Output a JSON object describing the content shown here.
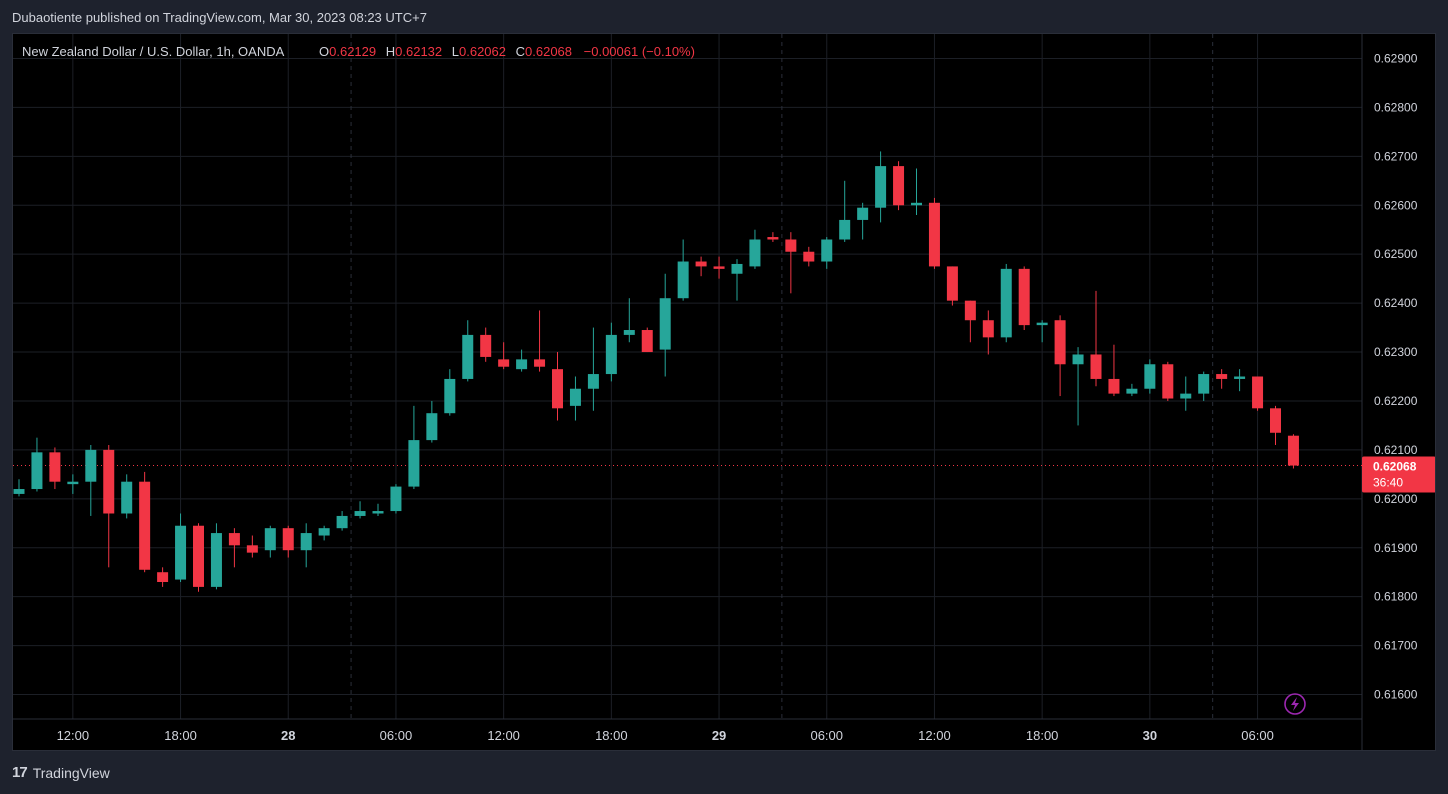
{
  "header": {
    "published": "Dubaotiente published on TradingView.com, Mar 30, 2023 08:23 UTC+7"
  },
  "legend": {
    "symbol": "New Zealand Dollar / U.S. Dollar, 1h, OANDA",
    "o_label": "O",
    "o_value": "0.62129",
    "h_label": "H",
    "h_value": "0.62132",
    "l_label": "L",
    "l_value": "0.62062",
    "c_label": "C",
    "c_value": "0.62068",
    "change": "−0.00061 (−0.10%)"
  },
  "price_tag": {
    "price": "0.62068",
    "countdown": "36:40"
  },
  "footer": {
    "brand": "TradingView"
  },
  "colors": {
    "up": "#26a69a",
    "down": "#f23645",
    "grid": "#1c1f26",
    "text": "#d1d4dc"
  },
  "chart_data": {
    "type": "candlestick",
    "ylim": [
      0.6155,
      0.6295
    ],
    "y_ticks": [
      "0.62900",
      "0.62800",
      "0.62700",
      "0.62600",
      "0.62500",
      "0.62400",
      "0.62300",
      "0.62200",
      "0.62100",
      "0.62000",
      "0.61900",
      "0.61800",
      "0.61700",
      "0.61600"
    ],
    "x_ticks": [
      {
        "index": 3,
        "label": "12:00",
        "bold": false
      },
      {
        "index": 9,
        "label": "18:00",
        "bold": false
      },
      {
        "index": 15,
        "label": "28",
        "bold": true
      },
      {
        "index": 21,
        "label": "06:00",
        "bold": false
      },
      {
        "index": 27,
        "label": "12:00",
        "bold": false
      },
      {
        "index": 33,
        "label": "18:00",
        "bold": false
      },
      {
        "index": 39,
        "label": "29",
        "bold": true
      },
      {
        "index": 45,
        "label": "06:00",
        "bold": false
      },
      {
        "index": 51,
        "label": "12:00",
        "bold": false
      },
      {
        "index": 57,
        "label": "18:00",
        "bold": false
      },
      {
        "index": 63,
        "label": "30",
        "bold": true
      },
      {
        "index": 69,
        "label": "06:00",
        "bold": false
      }
    ],
    "last_price": 0.62068,
    "candles": [
      {
        "o": 0.6201,
        "h": 0.6204,
        "l": 0.62005,
        "c": 0.6202
      },
      {
        "o": 0.6202,
        "h": 0.62125,
        "l": 0.62015,
        "c": 0.62095
      },
      {
        "o": 0.62095,
        "h": 0.62105,
        "l": 0.6202,
        "c": 0.62035
      },
      {
        "o": 0.6203,
        "h": 0.6205,
        "l": 0.6201,
        "c": 0.62035
      },
      {
        "o": 0.62035,
        "h": 0.6211,
        "l": 0.61965,
        "c": 0.621
      },
      {
        "o": 0.621,
        "h": 0.6211,
        "l": 0.6186,
        "c": 0.6197
      },
      {
        "o": 0.6197,
        "h": 0.6205,
        "l": 0.6196,
        "c": 0.62035
      },
      {
        "o": 0.62035,
        "h": 0.62055,
        "l": 0.6185,
        "c": 0.61855
      },
      {
        "o": 0.6185,
        "h": 0.6186,
        "l": 0.6182,
        "c": 0.6183
      },
      {
        "o": 0.61835,
        "h": 0.6197,
        "l": 0.6183,
        "c": 0.61945
      },
      {
        "o": 0.61945,
        "h": 0.6195,
        "l": 0.6181,
        "c": 0.6182
      },
      {
        "o": 0.6182,
        "h": 0.6195,
        "l": 0.61815,
        "c": 0.6193
      },
      {
        "o": 0.6193,
        "h": 0.6194,
        "l": 0.6186,
        "c": 0.61905
      },
      {
        "o": 0.61905,
        "h": 0.61925,
        "l": 0.6188,
        "c": 0.6189
      },
      {
        "o": 0.61895,
        "h": 0.61945,
        "l": 0.6188,
        "c": 0.6194
      },
      {
        "o": 0.6194,
        "h": 0.61945,
        "l": 0.6188,
        "c": 0.61895
      },
      {
        "o": 0.61895,
        "h": 0.6195,
        "l": 0.6186,
        "c": 0.6193
      },
      {
        "o": 0.61925,
        "h": 0.61945,
        "l": 0.61915,
        "c": 0.6194
      },
      {
        "o": 0.6194,
        "h": 0.61975,
        "l": 0.61935,
        "c": 0.61965
      },
      {
        "o": 0.61965,
        "h": 0.61995,
        "l": 0.6196,
        "c": 0.61975
      },
      {
        "o": 0.6197,
        "h": 0.6199,
        "l": 0.61965,
        "c": 0.61975
      },
      {
        "o": 0.61975,
        "h": 0.6203,
        "l": 0.6197,
        "c": 0.62025
      },
      {
        "o": 0.62025,
        "h": 0.6219,
        "l": 0.6202,
        "c": 0.6212
      },
      {
        "o": 0.6212,
        "h": 0.622,
        "l": 0.62115,
        "c": 0.62175
      },
      {
        "o": 0.62175,
        "h": 0.62265,
        "l": 0.6217,
        "c": 0.62245
      },
      {
        "o": 0.62245,
        "h": 0.62365,
        "l": 0.6224,
        "c": 0.62335
      },
      {
        "o": 0.62335,
        "h": 0.6235,
        "l": 0.6228,
        "c": 0.6229
      },
      {
        "o": 0.62285,
        "h": 0.6232,
        "l": 0.62265,
        "c": 0.6227
      },
      {
        "o": 0.62265,
        "h": 0.62305,
        "l": 0.6226,
        "c": 0.62285
      },
      {
        "o": 0.62285,
        "h": 0.62385,
        "l": 0.6226,
        "c": 0.6227
      },
      {
        "o": 0.62265,
        "h": 0.623,
        "l": 0.6216,
        "c": 0.62185
      },
      {
        "o": 0.6219,
        "h": 0.6225,
        "l": 0.6216,
        "c": 0.62225
      },
      {
        "o": 0.62225,
        "h": 0.6235,
        "l": 0.6218,
        "c": 0.62255
      },
      {
        "o": 0.62255,
        "h": 0.6236,
        "l": 0.6224,
        "c": 0.62335
      },
      {
        "o": 0.62335,
        "h": 0.6241,
        "l": 0.6232,
        "c": 0.62345
      },
      {
        "o": 0.62345,
        "h": 0.6235,
        "l": 0.623,
        "c": 0.623
      },
      {
        "o": 0.62305,
        "h": 0.6246,
        "l": 0.6225,
        "c": 0.6241
      },
      {
        "o": 0.6241,
        "h": 0.6253,
        "l": 0.62405,
        "c": 0.62485
      },
      {
        "o": 0.62485,
        "h": 0.62495,
        "l": 0.62455,
        "c": 0.62475
      },
      {
        "o": 0.62475,
        "h": 0.62495,
        "l": 0.6245,
        "c": 0.6247
      },
      {
        "o": 0.6246,
        "h": 0.6249,
        "l": 0.62405,
        "c": 0.6248
      },
      {
        "o": 0.62475,
        "h": 0.6255,
        "l": 0.6247,
        "c": 0.6253
      },
      {
        "o": 0.62535,
        "h": 0.62545,
        "l": 0.62525,
        "c": 0.6253
      },
      {
        "o": 0.6253,
        "h": 0.62545,
        "l": 0.6242,
        "c": 0.62505
      },
      {
        "o": 0.62505,
        "h": 0.62515,
        "l": 0.62475,
        "c": 0.62485
      },
      {
        "o": 0.62485,
        "h": 0.62535,
        "l": 0.6247,
        "c": 0.6253
      },
      {
        "o": 0.6253,
        "h": 0.6265,
        "l": 0.62525,
        "c": 0.6257
      },
      {
        "o": 0.6257,
        "h": 0.62605,
        "l": 0.6253,
        "c": 0.62595
      },
      {
        "o": 0.62595,
        "h": 0.6271,
        "l": 0.62565,
        "c": 0.6268
      },
      {
        "o": 0.6268,
        "h": 0.6269,
        "l": 0.6259,
        "c": 0.626
      },
      {
        "o": 0.626,
        "h": 0.62675,
        "l": 0.6258,
        "c": 0.62605
      },
      {
        "o": 0.62605,
        "h": 0.62615,
        "l": 0.6247,
        "c": 0.62475
      },
      {
        "o": 0.62475,
        "h": 0.62475,
        "l": 0.62395,
        "c": 0.62405
      },
      {
        "o": 0.62405,
        "h": 0.62405,
        "l": 0.6232,
        "c": 0.62365
      },
      {
        "o": 0.62365,
        "h": 0.62385,
        "l": 0.62295,
        "c": 0.6233
      },
      {
        "o": 0.6233,
        "h": 0.6248,
        "l": 0.6232,
        "c": 0.6247
      },
      {
        "o": 0.6247,
        "h": 0.62475,
        "l": 0.62345,
        "c": 0.62355
      },
      {
        "o": 0.62355,
        "h": 0.62365,
        "l": 0.6232,
        "c": 0.6236
      },
      {
        "o": 0.62365,
        "h": 0.62375,
        "l": 0.6221,
        "c": 0.62275
      },
      {
        "o": 0.62275,
        "h": 0.6231,
        "l": 0.6215,
        "c": 0.62295
      },
      {
        "o": 0.62295,
        "h": 0.62425,
        "l": 0.6223,
        "c": 0.62245
      },
      {
        "o": 0.62245,
        "h": 0.62315,
        "l": 0.6221,
        "c": 0.62215
      },
      {
        "o": 0.62215,
        "h": 0.62235,
        "l": 0.6221,
        "c": 0.62225
      },
      {
        "o": 0.62225,
        "h": 0.62285,
        "l": 0.62215,
        "c": 0.62275
      },
      {
        "o": 0.62275,
        "h": 0.6228,
        "l": 0.622,
        "c": 0.62205
      },
      {
        "o": 0.62205,
        "h": 0.6225,
        "l": 0.6218,
        "c": 0.62215
      },
      {
        "o": 0.62215,
        "h": 0.6226,
        "l": 0.622,
        "c": 0.62255
      },
      {
        "o": 0.62255,
        "h": 0.62265,
        "l": 0.62225,
        "c": 0.62245
      },
      {
        "o": 0.62245,
        "h": 0.62265,
        "l": 0.6222,
        "c": 0.6225
      },
      {
        "o": 0.6225,
        "h": 0.6225,
        "l": 0.6218,
        "c": 0.62185
      },
      {
        "o": 0.62185,
        "h": 0.6219,
        "l": 0.6211,
        "c": 0.62135
      },
      {
        "o": 0.62129,
        "h": 0.62132,
        "l": 0.62062,
        "c": 0.62068
      }
    ]
  }
}
